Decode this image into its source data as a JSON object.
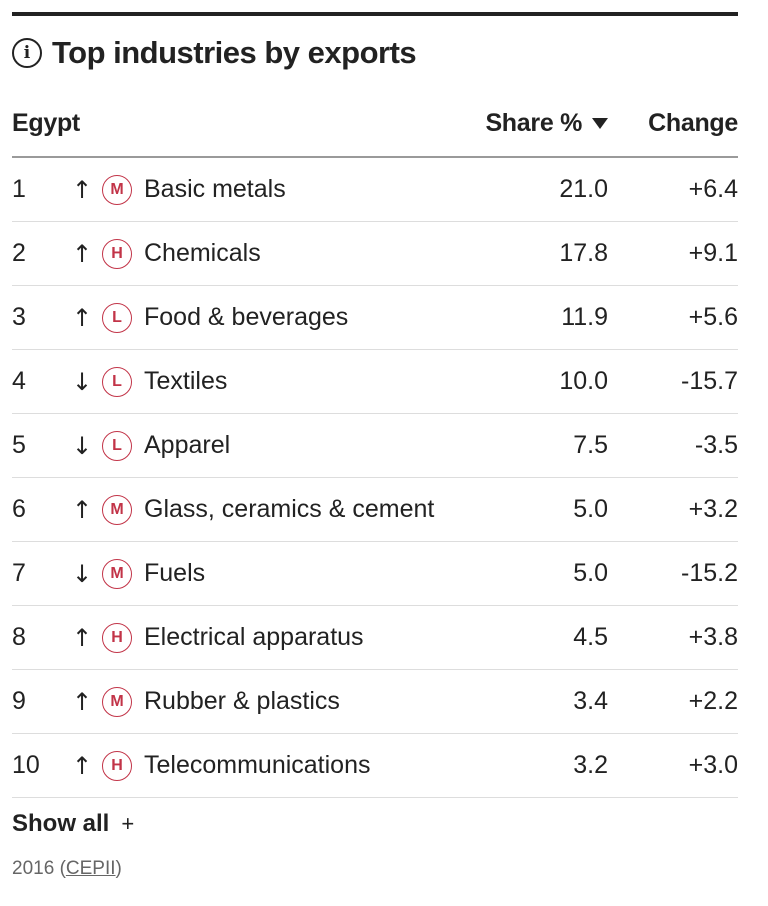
{
  "header": {
    "info_glyph": "i",
    "title": "Top industries by exports"
  },
  "columns": {
    "country": "Egypt",
    "share": "Share %",
    "change": "Change"
  },
  "icons": {
    "info": "info-icon",
    "sort": "caret-down-icon",
    "up": "arrow-up-icon",
    "down": "arrow-down-icon"
  },
  "colors": {
    "badge": "#c23448",
    "text": "#222222"
  },
  "chart_data": {
    "type": "table",
    "title": "Top industries by exports",
    "country": "Egypt",
    "columns": [
      "Share %",
      "Change"
    ],
    "rows": [
      {
        "rank": "1",
        "trend": "up",
        "arrow": "↑",
        "level": "M",
        "name": "Basic metals",
        "share": "21.0",
        "change": "+6.4"
      },
      {
        "rank": "2",
        "trend": "up",
        "arrow": "↑",
        "level": "H",
        "name": "Chemicals",
        "share": "17.8",
        "change": "+9.1"
      },
      {
        "rank": "3",
        "trend": "up",
        "arrow": "↑",
        "level": "L",
        "name": "Food & beverages",
        "share": "11.9",
        "change": "+5.6"
      },
      {
        "rank": "4",
        "trend": "down",
        "arrow": "↓",
        "level": "L",
        "name": "Textiles",
        "share": "10.0",
        "change": "-15.7"
      },
      {
        "rank": "5",
        "trend": "down",
        "arrow": "↓",
        "level": "L",
        "name": "Apparel",
        "share": "7.5",
        "change": "-3.5"
      },
      {
        "rank": "6",
        "trend": "up",
        "arrow": "↑",
        "level": "M",
        "name": "Glass, ceramics & cement",
        "share": "5.0",
        "change": "+3.2"
      },
      {
        "rank": "7",
        "trend": "down",
        "arrow": "↓",
        "level": "M",
        "name": "Fuels",
        "share": "5.0",
        "change": "-15.2"
      },
      {
        "rank": "8",
        "trend": "up",
        "arrow": "↑",
        "level": "H",
        "name": "Electrical apparatus",
        "share": "4.5",
        "change": "+3.8"
      },
      {
        "rank": "9",
        "trend": "up",
        "arrow": "↑",
        "level": "M",
        "name": "Rubber & plastics",
        "share": "3.4",
        "change": "+2.2"
      },
      {
        "rank": "10",
        "trend": "up",
        "arrow": "↑",
        "level": "H",
        "name": "Telecommunications",
        "share": "3.2",
        "change": "+3.0"
      }
    ]
  },
  "footer": {
    "show_all": "Show all",
    "plus": "+",
    "year": "2016",
    "source_open": "(",
    "source": "CEPII",
    "source_close": ")"
  }
}
